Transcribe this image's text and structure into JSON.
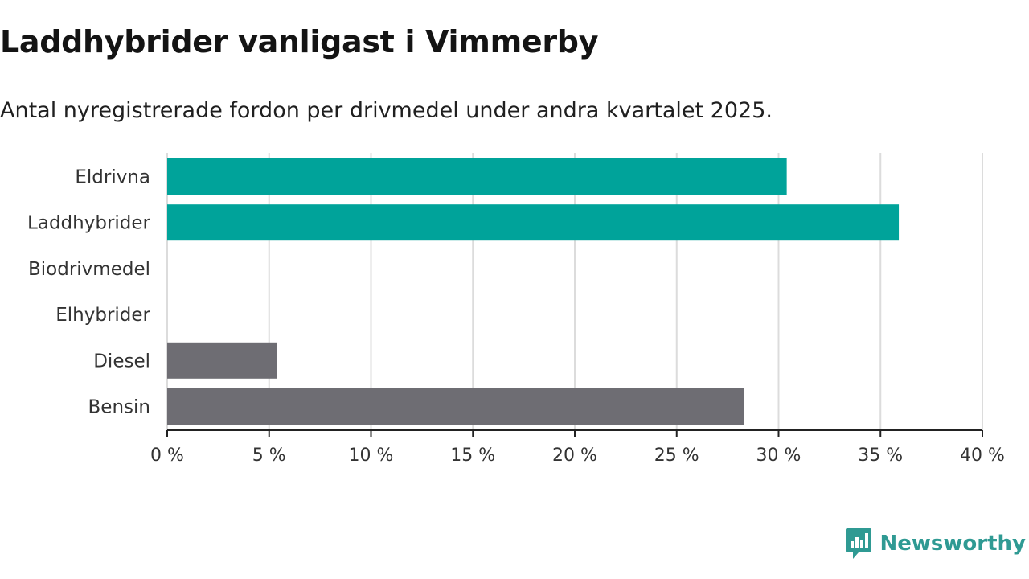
{
  "header": {
    "title": "Laddhybrider vanligast i Vimmerby",
    "subtitle": "Antal nyregistrerade fordon per drivmedel under andra kvartalet 2025."
  },
  "brand": {
    "name": "Newsworthy",
    "logo_icon": "bar-chart-speech-bubble-icon",
    "color": "#2f9a93"
  },
  "chart_data": {
    "type": "bar",
    "orientation": "horizontal",
    "categories": [
      "Eldrivna",
      "Laddhybrider",
      "Biodrivmedel",
      "Elhybrider",
      "Diesel",
      "Bensin"
    ],
    "values": [
      30.4,
      35.9,
      0,
      0,
      5.4,
      28.3
    ],
    "colors": [
      "#00a39a",
      "#00a39a",
      "#00a39a",
      "#00a39a",
      "#6e6d73",
      "#6e6d73"
    ],
    "xlim": [
      0,
      40
    ],
    "xticks": [
      0,
      5,
      10,
      15,
      20,
      25,
      30,
      35,
      40
    ],
    "tick_labels": [
      "0 %",
      "5 %",
      "10 %",
      "15 %",
      "20 %",
      "25 %",
      "30 %",
      "35 %",
      "40 %"
    ],
    "grid": true,
    "legend": "none"
  }
}
